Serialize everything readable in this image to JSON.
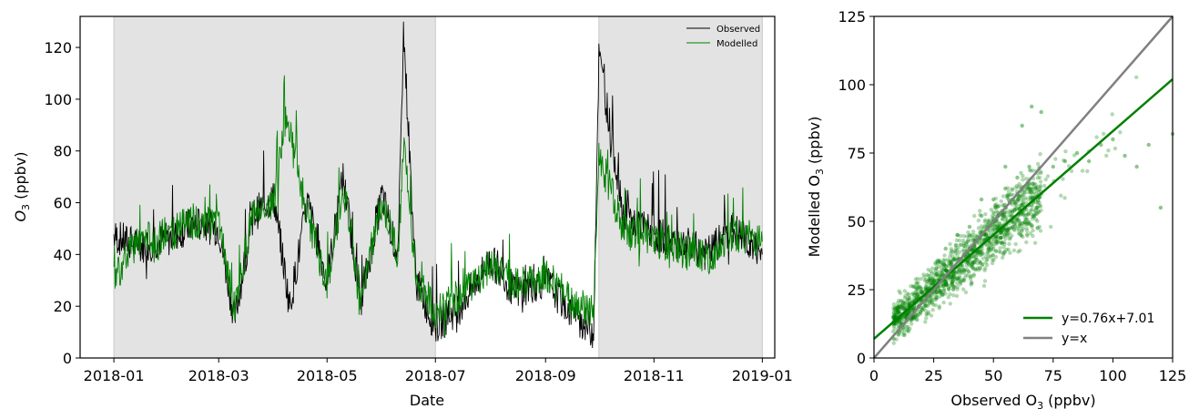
{
  "chart_data": [
    {
      "type": "line",
      "xlabel": "Date",
      "ylabel_main": "O",
      "ylabel_sub": "3",
      "ylabel_unit": " (ppbv)",
      "xlim": [
        "2017-12-13",
        "2019-01-08"
      ],
      "ylim": [
        0,
        132
      ],
      "x_ticks": [
        "2018-01-01",
        "2018-03-01",
        "2018-05-01",
        "2018-07-01",
        "2018-09-01",
        "2018-11-01",
        "2019-01-01"
      ],
      "x_tick_labels": [
        "2018-01",
        "2018-03",
        "2018-05",
        "2018-07",
        "2018-09",
        "2018-11",
        "2019-01"
      ],
      "y_ticks": [
        0,
        20,
        40,
        60,
        80,
        100,
        120
      ],
      "y_tick_labels": [
        "0",
        "20",
        "40",
        "60",
        "80",
        "100",
        "120"
      ],
      "shaded_periods": [
        [
          "2018-01-01",
          "2018-07-01"
        ],
        [
          "2018-10-01",
          "2019-01-01"
        ]
      ],
      "shade_color": "#e3e3e3",
      "legend_position": "top-right",
      "series": [
        {
          "name": "Observed",
          "color": "#000000",
          "x": [
            "2018-01-01",
            "2018-01-15",
            "2018-02-01",
            "2018-02-15",
            "2018-03-01",
            "2018-03-10",
            "2018-03-20",
            "2018-04-01",
            "2018-04-10",
            "2018-04-20",
            "2018-05-01",
            "2018-05-10",
            "2018-05-20",
            "2018-06-01",
            "2018-06-10",
            "2018-06-13",
            "2018-06-20",
            "2018-07-01",
            "2018-07-15",
            "2018-08-01",
            "2018-08-15",
            "2018-09-01",
            "2018-09-15",
            "2018-09-28",
            "2018-10-01",
            "2018-10-15",
            "2018-11-01",
            "2018-11-15",
            "2018-12-01",
            "2018-12-15",
            "2019-01-01"
          ],
          "values": [
            47,
            43,
            46,
            52,
            50,
            15,
            55,
            62,
            20,
            60,
            30,
            70,
            22,
            63,
            38,
            127,
            30,
            12,
            20,
            38,
            25,
            30,
            18,
            10,
            117,
            55,
            48,
            45,
            40,
            50,
            40
          ]
        },
        {
          "name": "Modelled",
          "color": "#008000",
          "x": [
            "2018-01-01",
            "2018-01-15",
            "2018-02-01",
            "2018-02-15",
            "2018-03-01",
            "2018-03-10",
            "2018-03-20",
            "2018-04-01",
            "2018-04-08",
            "2018-04-20",
            "2018-05-01",
            "2018-05-10",
            "2018-05-20",
            "2018-06-01",
            "2018-06-10",
            "2018-06-13",
            "2018-06-20",
            "2018-07-01",
            "2018-07-15",
            "2018-08-01",
            "2018-08-15",
            "2018-09-01",
            "2018-09-15",
            "2018-09-28",
            "2018-10-01",
            "2018-10-15",
            "2018-11-01",
            "2018-11-15",
            "2018-12-01",
            "2018-12-15",
            "2019-01-01"
          ],
          "values": [
            32,
            45,
            48,
            53,
            52,
            18,
            56,
            60,
            93,
            55,
            28,
            66,
            24,
            60,
            40,
            82,
            32,
            18,
            24,
            36,
            28,
            33,
            22,
            18,
            78,
            50,
            46,
            42,
            38,
            48,
            45
          ]
        }
      ]
    },
    {
      "type": "scatter",
      "xlabel_main": "Observed O",
      "xlabel_sub": "3",
      "xlabel_unit": " (ppbv)",
      "ylabel_main": "Modelled O",
      "ylabel_sub": "3",
      "ylabel_unit": " (ppbv)",
      "xlim": [
        0,
        125
      ],
      "ylim": [
        0,
        125
      ],
      "x_ticks": [
        0,
        25,
        50,
        75,
        100,
        125
      ],
      "y_ticks": [
        0,
        25,
        50,
        75,
        100,
        125
      ],
      "x_tick_labels": [
        "0",
        "25",
        "50",
        "75",
        "100",
        "125"
      ],
      "y_tick_labels": [
        "0",
        "25",
        "50",
        "75",
        "100",
        "125"
      ],
      "point_color": "#008000",
      "points": {
        "x": [
          8,
          10,
          12,
          15,
          18,
          20,
          22,
          25,
          28,
          30,
          32,
          35,
          38,
          40,
          42,
          45,
          48,
          50,
          52,
          55,
          58,
          60,
          62,
          65,
          68,
          70,
          75,
          80,
          85,
          90,
          95,
          100,
          105,
          110,
          115,
          120,
          125,
          35,
          40,
          45,
          50,
          55,
          60,
          65,
          18,
          22,
          28,
          33,
          38,
          43,
          48,
          53,
          58,
          63,
          30,
          45,
          55,
          62,
          66,
          70
        ],
        "y": [
          15,
          17,
          18,
          20,
          22,
          24,
          25,
          28,
          30,
          32,
          35,
          36,
          38,
          40,
          42,
          45,
          48,
          50,
          52,
          55,
          58,
          60,
          56,
          62,
          55,
          60,
          70,
          72,
          75,
          72,
          78,
          80,
          74,
          70,
          78,
          55,
          82,
          45,
          48,
          52,
          58,
          62,
          66,
          70,
          14,
          16,
          24,
          28,
          32,
          36,
          40,
          44,
          48,
          55,
          40,
          58,
          70,
          85,
          92,
          90
        ]
      },
      "fit_line": {
        "slope": 0.76,
        "intercept": 7.01,
        "color": "#008000"
      },
      "identity_line": {
        "slope": 1,
        "intercept": 0,
        "color": "#808080"
      },
      "legend_position": "lower-right",
      "legend": [
        {
          "label": "y=0.76x+7.01",
          "color": "#008000"
        },
        {
          "label": "y=x",
          "color": "#808080"
        }
      ]
    }
  ]
}
